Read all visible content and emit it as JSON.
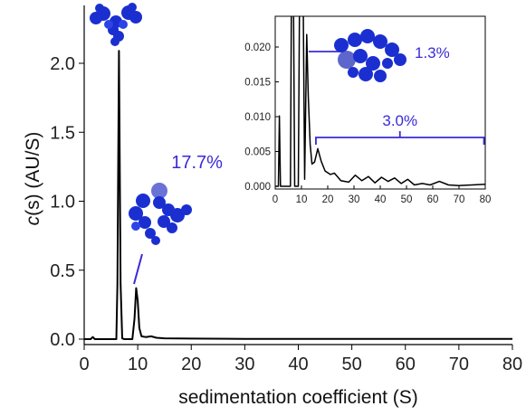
{
  "chart_data": [
    {
      "type": "line",
      "xlabel": "sedimentation coefficient (S)",
      "ylabel_prefix": "c",
      "ylabel_suffix": "(s) (AU/S)",
      "xlim": [
        0,
        80
      ],
      "ylim": [
        -0.05,
        2.35
      ],
      "x_ticks": [
        0,
        10,
        20,
        30,
        40,
        50,
        60,
        70,
        80
      ],
      "y_ticks": [
        "0.0",
        "0.5",
        "1.0",
        "1.5",
        "2.0"
      ],
      "series": [
        {
          "x": [
            0,
            1.2,
            1.6,
            2.0,
            6.0,
            6.2,
            6.5,
            6.8,
            7.1,
            7.5,
            9.0,
            9.4,
            9.7,
            10.0,
            10.3,
            10.7,
            11.5,
            12.5,
            13.5,
            15,
            20,
            30,
            80
          ],
          "y": [
            0,
            0,
            0.015,
            0,
            0,
            0.4,
            2.09,
            0.4,
            0.005,
            0,
            0,
            0.15,
            0.37,
            0.28,
            0.08,
            0.02,
            0.015,
            0.02,
            0.01,
            0.006,
            0.004,
            0.002,
            0.001
          ]
        }
      ],
      "annotations": [
        {
          "text": "17.7%",
          "x_data": 13.8,
          "y_data": 1.05,
          "color": "#3a2bd6"
        }
      ]
    },
    {
      "type": "line",
      "role": "inset",
      "xlim": [
        0,
        80
      ],
      "ylim": [
        -0.0005,
        0.025
      ],
      "x_ticks": [
        0,
        10,
        20,
        30,
        40,
        50,
        60,
        70,
        80
      ],
      "y_ticks": [
        "0.000",
        "0.005",
        "0.010",
        "0.015",
        "0.020"
      ],
      "series": [
        {
          "x": [
            0,
            1.2,
            1.6,
            2.0,
            5.8,
            6.2,
            6.9,
            7.4,
            8.8,
            9.3,
            10.6,
            11.2,
            12.0,
            12.6,
            13.3,
            14.0,
            15.0,
            16.2,
            17.5,
            19.0,
            21.0,
            22.5,
            25.0,
            28.0,
            30.5,
            33.0,
            35.5,
            38.0,
            40.5,
            43.0,
            45.5,
            48.0,
            50.5,
            53.0,
            56.0,
            59.0,
            62.5,
            66.0,
            70.0,
            75.0,
            80.0
          ],
          "y": [
            0,
            0,
            0.0101,
            0,
            0,
            0.03,
            0.03,
            0,
            0,
            0.03,
            0.03,
            0.001,
            0.0218,
            0.013,
            0.006,
            0.0032,
            0.0035,
            0.0054,
            0.0036,
            0.0022,
            0.0017,
            0.0019,
            0.0008,
            0.0006,
            0.0016,
            0.0008,
            0.0014,
            0.0005,
            0.0013,
            0.0007,
            0.0012,
            0.0004,
            0.001,
            0.0002,
            0.0004,
            0.0002,
            0.0007,
            0.0002,
            0.0001,
            0.0002,
            0.0003
          ]
        }
      ],
      "annotations": [
        {
          "text": "1.3%",
          "color": "#3a2bd6"
        },
        {
          "text": "3.0%",
          "color": "#3a2bd6"
        }
      ]
    }
  ]
}
